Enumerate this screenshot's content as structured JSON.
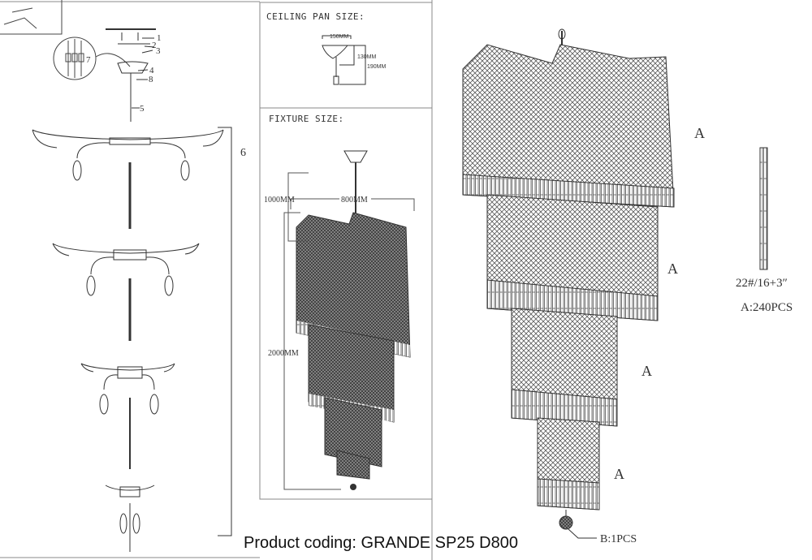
{
  "ceiling_pan": {
    "title": "CEILING PAN SIZE:",
    "width": "150MM",
    "height_inner": "130MM",
    "height_outer": "190MM"
  },
  "fixture": {
    "title": "FIXTURE SIZE:",
    "diameter": "800MM",
    "top_height": "1000MM",
    "total_height": "2000MM"
  },
  "assembly": {
    "part_labels": [
      "1",
      "2",
      "3",
      "4",
      "8",
      "5",
      "7"
    ],
    "arm_group_label": "6"
  },
  "crystals": {
    "tier_label": "A",
    "spec": "22#/16+3″",
    "count_a": "A:240PCS",
    "count_b": "B:1PCS"
  },
  "product_coding": "Product coding: GRANDE SP25 D800"
}
